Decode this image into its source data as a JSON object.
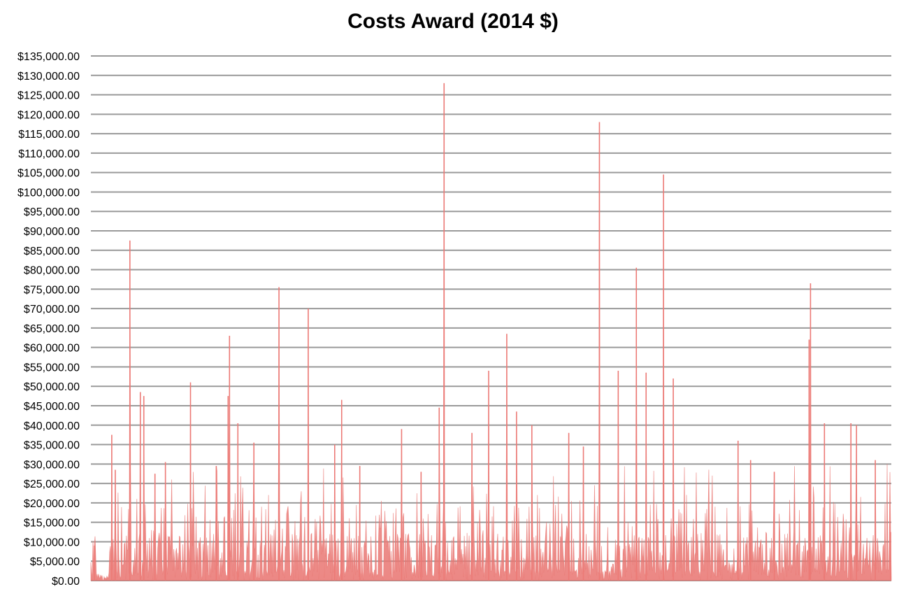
{
  "chart_data": {
    "type": "area",
    "title": "Costs Award (2014 $)",
    "xlabel": "",
    "ylabel": "",
    "ylim": [
      0,
      135000
    ],
    "y_tick_step": 5000,
    "y_tick_labels": [
      "$0.00",
      "$5,000.00",
      "$10,000.00",
      "$15,000.00",
      "$20,000.00",
      "$25,000.00",
      "$30,000.00",
      "$35,000.00",
      "$40,000.00",
      "$45,000.00",
      "$50,000.00",
      "$55,000.00",
      "$60,000.00",
      "$65,000.00",
      "$70,000.00",
      "$75,000.00",
      "$80,000.00",
      "$85,000.00",
      "$90,000.00",
      "$95,000.00",
      "$100,000.00",
      "$105,000.00",
      "$110,000.00",
      "$115,000.00",
      "$120,000.00",
      "$125,000.00",
      "$130,000.00",
      "$135,000.00"
    ],
    "grid": true,
    "legend": "none",
    "series_color": "#e8736f",
    "grid_color": "#9a9a9a",
    "x_tick_labels": [],
    "point_count": 1150,
    "notable_values": [
      {
        "index": 5,
        "value": 9000
      },
      {
        "index": 30,
        "value": 37500
      },
      {
        "index": 35,
        "value": 28500
      },
      {
        "index": 56,
        "value": 87500
      },
      {
        "index": 71,
        "value": 48500
      },
      {
        "index": 76,
        "value": 47500
      },
      {
        "index": 92,
        "value": 27500
      },
      {
        "index": 107,
        "value": 30500
      },
      {
        "index": 143,
        "value": 51000
      },
      {
        "index": 180,
        "value": 29500
      },
      {
        "index": 199,
        "value": 63000
      },
      {
        "index": 197,
        "value": 47500
      },
      {
        "index": 211,
        "value": 40500
      },
      {
        "index": 234,
        "value": 35500
      },
      {
        "index": 270,
        "value": 75500
      },
      {
        "index": 312,
        "value": 70000
      },
      {
        "index": 350,
        "value": 35000
      },
      {
        "index": 360,
        "value": 46500
      },
      {
        "index": 386,
        "value": 29500
      },
      {
        "index": 446,
        "value": 39000
      },
      {
        "index": 474,
        "value": 28000
      },
      {
        "index": 500,
        "value": 44500
      },
      {
        "index": 507,
        "value": 128000
      },
      {
        "index": 547,
        "value": 38000
      },
      {
        "index": 571,
        "value": 54000
      },
      {
        "index": 597,
        "value": 63500
      },
      {
        "index": 611,
        "value": 43500
      },
      {
        "index": 633,
        "value": 40000
      },
      {
        "index": 686,
        "value": 38000
      },
      {
        "index": 707,
        "value": 34500
      },
      {
        "index": 730,
        "value": 118000
      },
      {
        "index": 757,
        "value": 54000
      },
      {
        "index": 783,
        "value": 80500
      },
      {
        "index": 797,
        "value": 53500
      },
      {
        "index": 822,
        "value": 104500
      },
      {
        "index": 836,
        "value": 52000
      },
      {
        "index": 929,
        "value": 36000
      },
      {
        "index": 947,
        "value": 31000
      },
      {
        "index": 981,
        "value": 28000
      },
      {
        "index": 1031,
        "value": 62000
      },
      {
        "index": 1033,
        "value": 76500
      },
      {
        "index": 1053,
        "value": 40500
      },
      {
        "index": 1091,
        "value": 40500
      },
      {
        "index": 1099,
        "value": 40000
      },
      {
        "index": 1126,
        "value": 31000
      },
      {
        "index": 1148,
        "value": 12500
      }
    ]
  }
}
